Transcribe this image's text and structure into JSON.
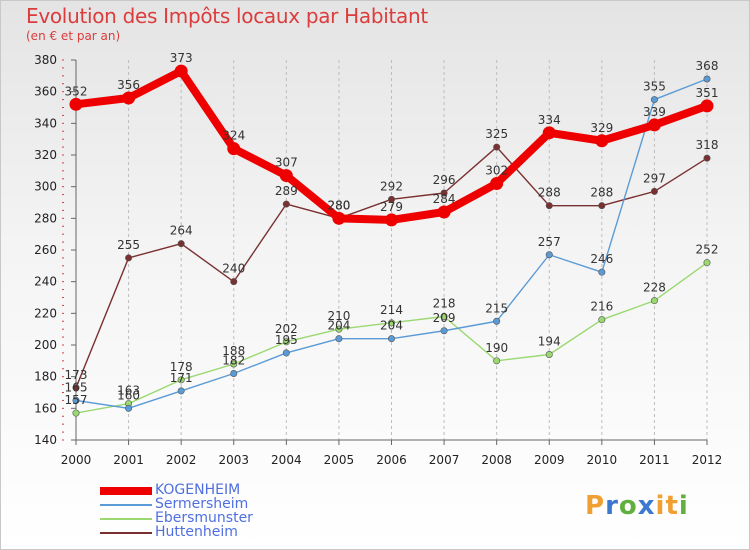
{
  "title": "Evolution des Impôts locaux par Habitant",
  "subtitle": "(en € et par an)",
  "brand": {
    "letters": [
      "P",
      "r",
      "o",
      "x",
      "i",
      "t",
      "i"
    ],
    "colors": [
      "#f0a030",
      "#3c78d0",
      "#60b040",
      "#3c78d0",
      "#f0a030",
      "#f0a030",
      "#60b040"
    ]
  },
  "chart_data": {
    "type": "line",
    "x": [
      2000,
      2001,
      2002,
      2003,
      2004,
      2005,
      2006,
      2007,
      2008,
      2009,
      2010,
      2011,
      2012
    ],
    "x_tick_labels": [
      "2000",
      "2001",
      "2002",
      "2003",
      "2004",
      "2005",
      "2006",
      "2007",
      "2008",
      "2009",
      "2010",
      "2011",
      "2012"
    ],
    "ylim": [
      140,
      380
    ],
    "y_ticks": [
      140,
      160,
      180,
      200,
      220,
      240,
      260,
      280,
      300,
      320,
      340,
      360,
      380
    ],
    "grid": "vertical dashed",
    "legend_position": "bottom-left",
    "series": [
      {
        "name": "KOGENHEIM",
        "color": "#ee0000",
        "thick": true,
        "values": [
          352,
          356,
          373,
          324,
          307,
          280,
          279,
          284,
          302,
          334,
          329,
          339,
          351
        ]
      },
      {
        "name": "Sermersheim",
        "color": "#5b9bd5",
        "values": [
          165,
          160,
          171,
          182,
          195,
          204,
          204,
          209,
          215,
          257,
          246,
          355,
          368
        ]
      },
      {
        "name": "Ebersmunster",
        "color": "#9ad870",
        "values": [
          157,
          163,
          178,
          188,
          202,
          210,
          214,
          218,
          190,
          194,
          216,
          228,
          252
        ]
      },
      {
        "name": "Huttenheim",
        "color": "#7a3030",
        "values": [
          173,
          255,
          264,
          240,
          289,
          280,
          292,
          296,
          325,
          288,
          288,
          297,
          318
        ]
      }
    ]
  }
}
